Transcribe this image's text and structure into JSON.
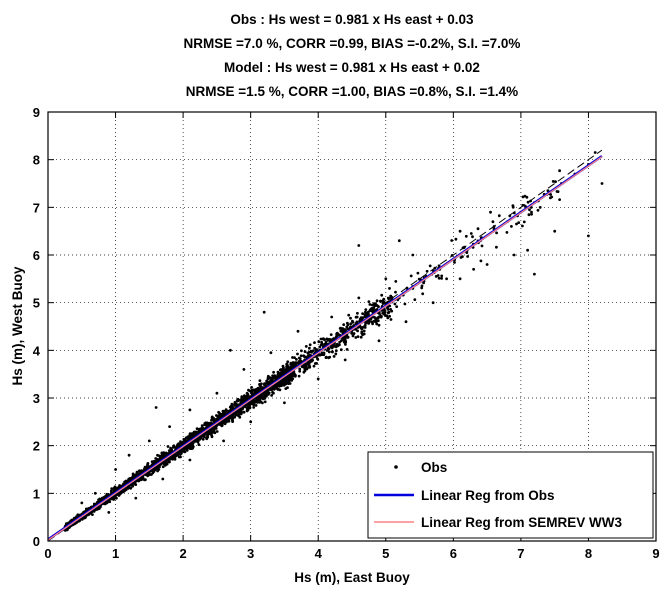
{
  "chart_data": {
    "type": "scatter",
    "title_lines": [
      "Obs :  Hs west = 0.981 x Hs east + 0.03",
      "NRMSE =7.0 %, CORR =0.99, BIAS =-0.2%, S.I. =7.0%",
      "Model :  Hs west = 0.981 x Hs east + 0.02",
      "NRMSE =1.5 %, CORR =1.00, BIAS =0.8%, S.I. =1.4%"
    ],
    "xlabel": "Hs (m), East Buoy",
    "ylabel": "Hs (m), West Buoy",
    "xlim": [
      0,
      9
    ],
    "ylim": [
      0,
      9
    ],
    "xticks": [
      "0",
      "1",
      "2",
      "3",
      "4",
      "5",
      "6",
      "7",
      "8",
      "9"
    ],
    "yticks": [
      "0",
      "1",
      "2",
      "3",
      "4",
      "5",
      "6",
      "7",
      "8",
      "9"
    ],
    "grid": true,
    "legend_position": "bottom-right",
    "series": [
      {
        "name": "Obs",
        "kind": "scatter",
        "color": "#000000",
        "marker": "dot",
        "points": [
          [
            0.3,
            0.35
          ],
          [
            0.4,
            0.45
          ],
          [
            0.5,
            0.55
          ],
          [
            0.6,
            0.6
          ],
          [
            0.7,
            0.75
          ],
          [
            0.8,
            0.85
          ],
          [
            0.9,
            0.95
          ],
          [
            1.0,
            1.0
          ],
          [
            1.2,
            1.15
          ],
          [
            1.4,
            1.45
          ],
          [
            1.6,
            1.6
          ],
          [
            1.8,
            1.85
          ],
          [
            2.0,
            1.95
          ],
          [
            2.2,
            2.2
          ],
          [
            2.5,
            2.45
          ],
          [
            2.8,
            2.8
          ],
          [
            3.0,
            3.0
          ],
          [
            3.2,
            3.15
          ],
          [
            3.4,
            3.4
          ],
          [
            3.6,
            3.5
          ],
          [
            3.8,
            3.8
          ],
          [
            4.0,
            3.95
          ],
          [
            4.2,
            4.1
          ],
          [
            4.4,
            4.4
          ],
          [
            4.6,
            4.5
          ],
          [
            4.8,
            4.7
          ],
          [
            5.0,
            4.95
          ],
          [
            5.2,
            5.1
          ],
          [
            5.4,
            5.3
          ],
          [
            5.6,
            5.55
          ],
          [
            5.8,
            5.7
          ],
          [
            6.0,
            5.9
          ],
          [
            6.2,
            6.05
          ],
          [
            6.4,
            6.3
          ],
          [
            6.6,
            6.55
          ],
          [
            6.8,
            6.7
          ],
          [
            7.0,
            6.9
          ],
          [
            7.2,
            7.1
          ],
          [
            7.4,
            7.35
          ],
          [
            7.6,
            7.5
          ],
          [
            7.8,
            7.7
          ],
          [
            8.0,
            7.9
          ],
          [
            0.5,
            0.8
          ],
          [
            0.7,
            1.0
          ],
          [
            1.0,
            1.5
          ],
          [
            1.2,
            1.8
          ],
          [
            1.5,
            2.1
          ],
          [
            1.8,
            2.4
          ],
          [
            2.1,
            2.75
          ],
          [
            2.5,
            3.1
          ],
          [
            1.6,
            2.8
          ],
          [
            2.9,
            3.6
          ],
          [
            3.3,
            3.95
          ],
          [
            3.7,
            4.4
          ],
          [
            4.2,
            4.7
          ],
          [
            4.6,
            5.1
          ],
          [
            5.0,
            5.5
          ],
          [
            5.4,
            6.0
          ],
          [
            5.2,
            6.3
          ],
          [
            6.1,
            6.5
          ],
          [
            4.6,
            6.2
          ],
          [
            3.2,
            4.8
          ],
          [
            2.7,
            4.0
          ],
          [
            0.9,
            0.6
          ],
          [
            1.3,
            0.9
          ],
          [
            1.7,
            1.3
          ],
          [
            2.1,
            1.7
          ],
          [
            2.6,
            2.1
          ],
          [
            3.0,
            2.5
          ],
          [
            3.5,
            2.9
          ],
          [
            4.0,
            3.4
          ],
          [
            4.4,
            3.8
          ],
          [
            4.9,
            4.2
          ],
          [
            5.3,
            4.6
          ],
          [
            5.7,
            5.0
          ],
          [
            6.1,
            5.5
          ],
          [
            6.5,
            5.8
          ],
          [
            6.3,
            5.7
          ],
          [
            6.9,
            6.0
          ],
          [
            7.1,
            6.1
          ],
          [
            7.5,
            6.5
          ],
          [
            8.0,
            6.4
          ],
          [
            8.2,
            7.5
          ],
          [
            8.1,
            8.15
          ],
          [
            7.2,
            5.6
          ],
          [
            5.9,
            5.5
          ]
        ]
      },
      {
        "name": "Linear Reg from Obs",
        "kind": "line",
        "color": "#0000dd",
        "slope": 0.981,
        "intercept": 0.03,
        "x_range": [
          0.0,
          8.2
        ]
      },
      {
        "name": "Linear Reg from SEMREV WW3",
        "kind": "line",
        "color": "#ff8080",
        "slope": 0.981,
        "intercept": 0.02,
        "x_range": [
          0.0,
          8.2
        ]
      },
      {
        "name": "",
        "kind": "reference",
        "color": "#000000",
        "dash": "dashed",
        "slope": 1.0,
        "intercept": 0.0,
        "x_range": [
          0.0,
          8.2
        ]
      }
    ]
  }
}
